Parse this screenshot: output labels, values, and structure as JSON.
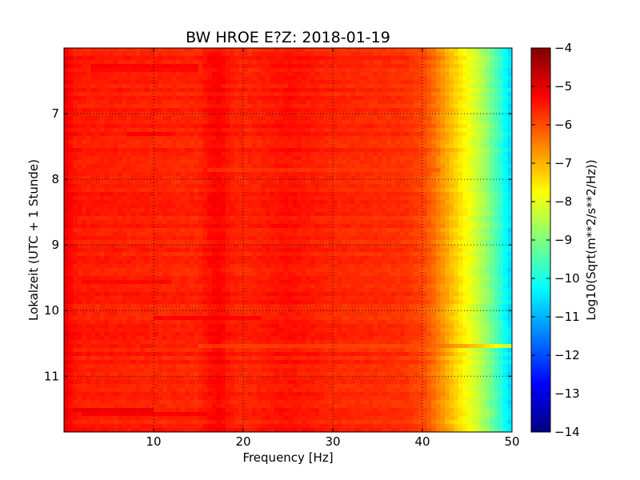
{
  "chart_data": {
    "type": "heatmap",
    "title": "BW HROE E?Z: 2018-01-19",
    "xlabel": "Frequency [Hz]",
    "ylabel": "Lokalzeit (UTC + 1 Stunde)",
    "xlim": [
      0,
      50
    ],
    "ylim": [
      11.85,
      6.0
    ],
    "x_ticks": [
      10,
      20,
      30,
      40,
      50
    ],
    "x_tick_labels": [
      "10",
      "20",
      "30",
      "40",
      "50"
    ],
    "y_ticks": [
      7,
      8,
      9,
      10,
      11
    ],
    "y_tick_labels": [
      "7",
      "8",
      "9",
      "10",
      "11"
    ],
    "grid": true,
    "colormap": "jet",
    "colorbar": {
      "label": "Log10(Sqrt(m**2/s**2/Hz))",
      "range": [
        -14,
        -4
      ],
      "ticks": [
        -4,
        -5,
        -6,
        -7,
        -8,
        -9,
        -10,
        -11,
        -12,
        -13,
        -14
      ],
      "tick_labels": [
        "−4",
        "−5",
        "−6",
        "−7",
        "−8",
        "−9",
        "−10",
        "−11",
        "−12",
        "−13",
        "−14"
      ]
    },
    "frequency_profile": {
      "x": [
        0,
        0.5,
        1,
        2,
        5,
        10,
        15,
        16.5,
        17.5,
        18.5,
        20,
        24.5,
        25.5,
        30,
        35,
        38,
        40,
        41,
        42,
        43,
        44,
        45,
        46,
        47,
        48,
        49,
        49.5,
        50
      ],
      "values": [
        -5.1,
        -5.2,
        -5.4,
        -5.5,
        -5.5,
        -5.55,
        -5.6,
        -5.3,
        -5.25,
        -5.5,
        -5.6,
        -5.4,
        -5.4,
        -5.6,
        -5.65,
        -5.7,
        -5.9,
        -6.2,
        -6.6,
        -7.0,
        -7.4,
        -7.8,
        -8.2,
        -8.7,
        -9.3,
        -10.0,
        -10.4,
        -10.6
      ]
    },
    "time_bands": [
      {
        "time": 6.3,
        "x_range": [
          3,
          15
        ],
        "value": -5.0
      },
      {
        "time": 7.3,
        "x_range": [
          7,
          12
        ],
        "value": -5.0
      },
      {
        "time": 7.85,
        "x_range": [
          16,
          42
        ],
        "value": -5.9
      },
      {
        "time": 9.55,
        "x_range": [
          2,
          12
        ],
        "value": -5.1
      },
      {
        "time": 10.1,
        "x_range": [
          10,
          22
        ],
        "value": -4.9
      },
      {
        "time": 10.55,
        "x_range": [
          15,
          50
        ],
        "value": -6.2
      },
      {
        "time": 11.5,
        "x_range": [
          1,
          10
        ],
        "value": -4.7
      },
      {
        "time": 11.6,
        "x_range": [
          2,
          16
        ],
        "value": -4.9
      }
    ]
  }
}
